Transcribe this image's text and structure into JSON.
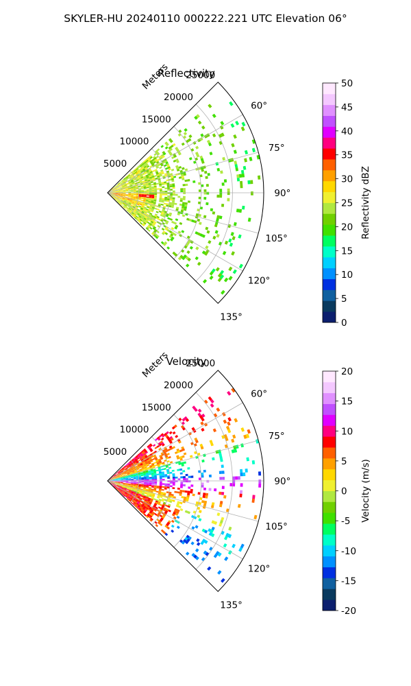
{
  "suptitle": "SKYLER-HU  20240110  000222.221 UTC Elevation 06°",
  "chart_data": [
    {
      "type": "heatmap",
      "title": "Reflectivity",
      "radial_label": "Meters",
      "radial_ticks": [
        "5000",
        "10000",
        "15000",
        "20000",
        "25000"
      ],
      "radial_tick_values": [
        5000,
        10000,
        15000,
        20000,
        25000
      ],
      "rmax": 25000,
      "theta_ticks": [
        "60°",
        "75°",
        "90°",
        "105°",
        "120°",
        "135°"
      ],
      "theta_tick_values": [
        60,
        75,
        90,
        105,
        120,
        135
      ],
      "theta_range": [
        45,
        135
      ],
      "grid": true,
      "colorbar": {
        "label": "Reflectivity dBZ",
        "range": [
          0,
          50
        ],
        "ticks": [
          "0",
          "5",
          "10",
          "15",
          "20",
          "25",
          "30",
          "35",
          "40",
          "45",
          "50"
        ],
        "tick_values": [
          0,
          5,
          10,
          15,
          20,
          25,
          30,
          35,
          40,
          45,
          50
        ],
        "colors": [
          "#0c1f6e",
          "#0a3a5e",
          "#1060a0",
          "#0030e0",
          "#0090ff",
          "#00d0ff",
          "#00ffc8",
          "#00ff60",
          "#40e000",
          "#70d000",
          "#b0e840",
          "#f0f030",
          "#ffd800",
          "#ffa000",
          "#ff6000",
          "#ff0000",
          "#ff0080",
          "#e000ff",
          "#c050ff",
          "#e090ff",
          "#f4c8ff",
          "#ffe8ff"
        ]
      }
    },
    {
      "type": "heatmap",
      "title": "Velocity",
      "radial_label": "Meters",
      "radial_ticks": [
        "5000",
        "10000",
        "15000",
        "20000",
        "25000"
      ],
      "radial_tick_values": [
        5000,
        10000,
        15000,
        20000,
        25000
      ],
      "rmax": 25000,
      "theta_ticks": [
        "60°",
        "75°",
        "90°",
        "105°",
        "120°",
        "135°"
      ],
      "theta_tick_values": [
        60,
        75,
        90,
        105,
        120,
        135
      ],
      "theta_range": [
        45,
        135
      ],
      "grid": true,
      "colorbar": {
        "label": "Velocity (m/s)",
        "range": [
          -20,
          20
        ],
        "ticks": [
          "-20",
          "-15",
          "-10",
          "-5",
          "0",
          "5",
          "10",
          "15",
          "20"
        ],
        "tick_values": [
          -20,
          -15,
          -10,
          -5,
          0,
          5,
          10,
          15,
          20
        ],
        "colors": [
          "#0c1f6e",
          "#0a3a5e",
          "#1060a0",
          "#0030e0",
          "#0090ff",
          "#00d0ff",
          "#00ffc8",
          "#00ff60",
          "#40e000",
          "#70d000",
          "#b0e840",
          "#f0f030",
          "#ffd800",
          "#ffa000",
          "#ff6000",
          "#ff0000",
          "#ff0080",
          "#e000ff",
          "#c050ff",
          "#e090ff",
          "#f4c8ff",
          "#ffe8ff"
        ]
      }
    }
  ]
}
